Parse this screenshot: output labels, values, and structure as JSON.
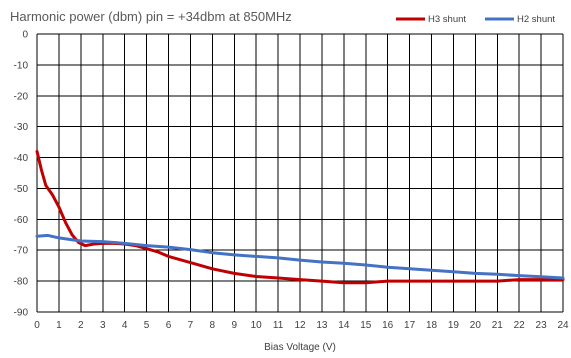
{
  "chart_data": {
    "type": "line",
    "title": "Harmonic power (dbm) pin  = +34dbm at 850MHz",
    "xlabel": "Bias Voltage (V)",
    "ylabel": "",
    "xlim": [
      0,
      24
    ],
    "ylim": [
      -90,
      0
    ],
    "x_ticks": [
      0,
      1,
      2,
      3,
      4,
      5,
      6,
      7,
      8,
      9,
      10,
      11,
      12,
      13,
      14,
      15,
      16,
      17,
      18,
      19,
      20,
      21,
      22,
      23,
      24
    ],
    "y_ticks": [
      0,
      -10,
      -20,
      -30,
      -40,
      -50,
      -60,
      -70,
      -80,
      -90
    ],
    "grid": true,
    "legend_position": "top-right",
    "series": [
      {
        "name": "H3 shunt",
        "color": "#c00000",
        "x": [
          0,
          0.2,
          0.4,
          0.7,
          1.0,
          1.3,
          1.6,
          1.9,
          2.2,
          2.6,
          3,
          3.5,
          4,
          4.5,
          5,
          5.5,
          6,
          7,
          8,
          9,
          10,
          11,
          12,
          13,
          14,
          15,
          16,
          17,
          18,
          19,
          20,
          21,
          22,
          23,
          24
        ],
        "y": [
          -38,
          -44,
          -49,
          -52,
          -56,
          -61,
          -65,
          -67.5,
          -68.5,
          -68,
          -67.8,
          -67.8,
          -68,
          -68.5,
          -69.5,
          -70.5,
          -72,
          -74,
          -76,
          -77.5,
          -78.5,
          -79,
          -79.5,
          -80,
          -80.5,
          -80.5,
          -80,
          -80,
          -80,
          -80,
          -80,
          -80,
          -79.5,
          -79.5,
          -79.5
        ]
      },
      {
        "name": "H2 shunt",
        "color": "#4472c4",
        "x": [
          0,
          0.5,
          1,
          2,
          3,
          4,
          5,
          6,
          7,
          8,
          9,
          10,
          11,
          12,
          13,
          14,
          15,
          16,
          17,
          18,
          19,
          20,
          21,
          22,
          23,
          24
        ],
        "y": [
          -65.5,
          -65.2,
          -66,
          -67,
          -67.2,
          -67.8,
          -68.5,
          -69,
          -69.8,
          -70.8,
          -71.5,
          -72,
          -72.5,
          -73.2,
          -73.8,
          -74.2,
          -74.8,
          -75.5,
          -76,
          -76.5,
          -77,
          -77.5,
          -77.8,
          -78.2,
          -78.6,
          -79
        ]
      }
    ]
  }
}
